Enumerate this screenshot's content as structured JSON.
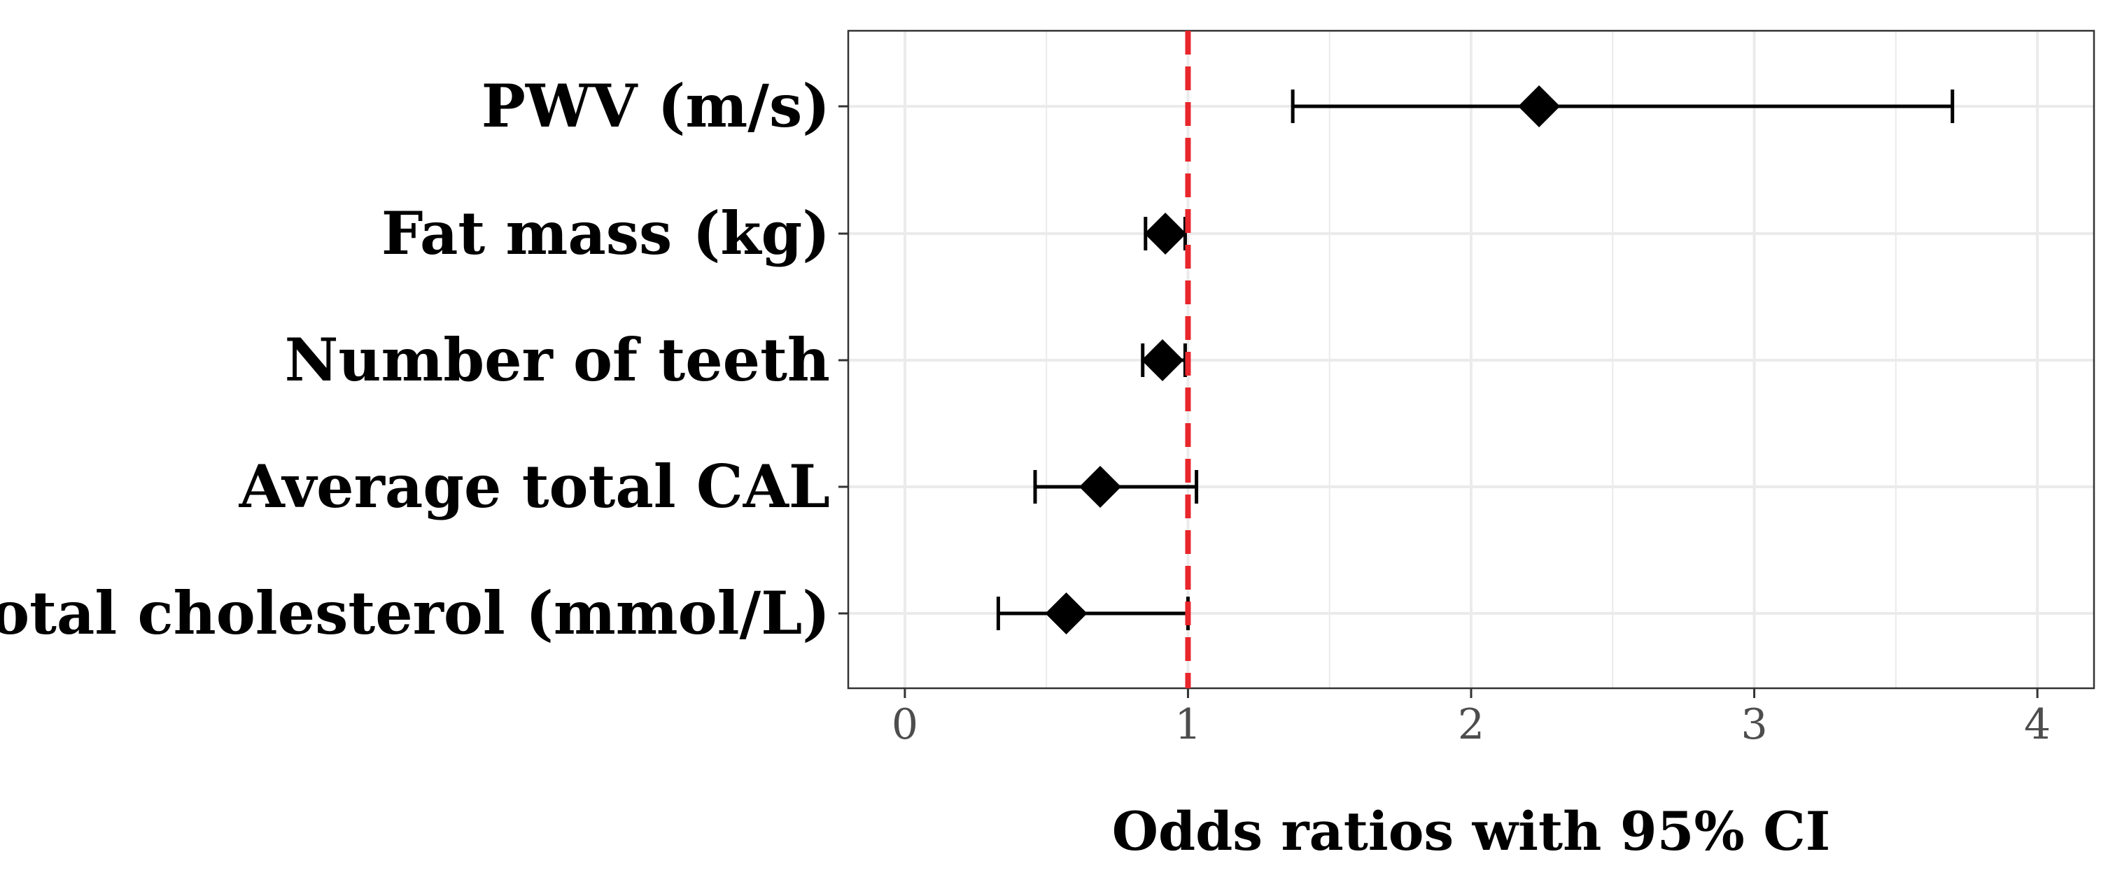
{
  "chart_data": {
    "type": "forest",
    "xlabel": "Odds ratios with 95% CI",
    "ylabel": "",
    "xlim": [
      -0.2,
      4.2
    ],
    "xticks": [
      "0",
      "1",
      "2",
      "3",
      "4"
    ],
    "grid": true,
    "reference_line": {
      "x": 1,
      "style": "dashed",
      "color": "#e8262b"
    },
    "categories": [
      "PWV (m/s)",
      "Fat mass (kg)",
      "Number of teeth",
      "Average total CAL",
      "Total cholesterol (mmol/L)"
    ],
    "estimates": [
      2.24,
      0.92,
      0.91,
      0.69,
      0.57
    ],
    "ci_lower": [
      1.37,
      0.85,
      0.84,
      0.46,
      0.33
    ],
    "ci_upper": [
      3.7,
      0.99,
      0.99,
      1.03,
      1.0
    ],
    "colors": {
      "points": "#000000",
      "grid": "#ebebeb",
      "panel_border": "#333333",
      "reference_line": "#e8262b"
    }
  }
}
